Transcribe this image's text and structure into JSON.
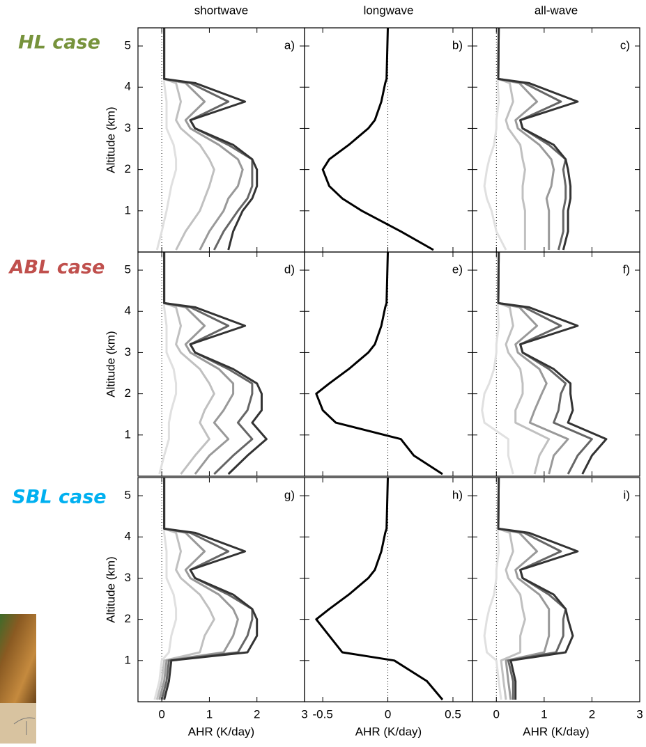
{
  "column_titles": [
    "shortwave",
    "longwave",
    "all-wave"
  ],
  "row_labels": [
    {
      "text": "HL case",
      "color": "#77933c"
    },
    {
      "text": "ABL case",
      "color": "#c0504d"
    },
    {
      "text": "SBL case",
      "color": "#00b0f0"
    }
  ],
  "chart_data": [
    {
      "type": "line",
      "panel_label": "a)",
      "ylabel": "Altitude (km)",
      "xlim": [
        -0.5,
        3
      ],
      "ylim": [
        0,
        5.44
      ],
      "xticks": [
        0,
        1,
        2,
        3
      ],
      "yticks": [
        1,
        2,
        3,
        4,
        5
      ],
      "y": [
        0.05,
        0.5,
        1,
        1.3,
        1.6,
        2,
        2.25,
        2.6,
        3,
        3.2,
        3.65,
        4.1,
        4.2,
        5.5
      ],
      "series": [
        {
          "color": "#e0e0e0",
          "values": [
            -0.1,
            0,
            0.1,
            0.15,
            0.2,
            0.3,
            0.3,
            0.25,
            0.1,
            0.1,
            0.1,
            0.05,
            0.05,
            0.05
          ]
        },
        {
          "color": "#c0c0c0",
          "values": [
            0.3,
            0.5,
            0.8,
            0.9,
            1,
            1.1,
            1,
            0.8,
            0.4,
            0.3,
            0.4,
            0.3,
            0.05,
            0.05
          ]
        },
        {
          "color": "#999999",
          "values": [
            0.8,
            1,
            1.3,
            1.4,
            1.6,
            1.7,
            1.6,
            1.2,
            0.6,
            0.5,
            0.9,
            0.5,
            0.05,
            0.05
          ]
        },
        {
          "color": "#666666",
          "values": [
            1.1,
            1.3,
            1.6,
            1.8,
            1.9,
            1.9,
            1.9,
            1.4,
            0.7,
            0.6,
            1.4,
            0.6,
            0.05,
            0.05
          ]
        },
        {
          "color": "#333333",
          "values": [
            1.4,
            1.5,
            1.7,
            1.9,
            2,
            2,
            1.9,
            1.5,
            0.7,
            0.6,
            1.75,
            0.7,
            0.05,
            0.05
          ]
        }
      ]
    },
    {
      "type": "line",
      "panel_label": "b)",
      "xlim": [
        -0.64,
        0.65
      ],
      "ylim": [
        0,
        5.44
      ],
      "xticks": [
        -0.5,
        0,
        0.5
      ],
      "yticks": [
        1,
        2,
        3,
        4,
        5
      ],
      "y": [
        0.05,
        0.5,
        1,
        1.3,
        1.6,
        2,
        2.25,
        2.6,
        3,
        3.2,
        3.65,
        4.1,
        4.2,
        5.5
      ],
      "series": [
        {
          "color": "#000000",
          "values": [
            0.35,
            0.1,
            -0.2,
            -0.35,
            -0.45,
            -0.5,
            -0.45,
            -0.3,
            -0.15,
            -0.1,
            -0.05,
            -0.02,
            -0.01,
            0
          ]
        }
      ]
    },
    {
      "type": "line",
      "panel_label": "c)",
      "xlim": [
        -0.5,
        3
      ],
      "ylim": [
        0,
        5.44
      ],
      "xticks": [
        0,
        1,
        2,
        3
      ],
      "yticks": [
        1,
        2,
        3,
        4,
        5
      ],
      "y": [
        0.05,
        0.5,
        1,
        1.3,
        1.6,
        2,
        2.25,
        2.6,
        3,
        3.2,
        3.65,
        4.1,
        4.2,
        5.5
      ],
      "series": [
        {
          "color": "#e0e0e0",
          "values": [
            0.2,
            0,
            -0.1,
            -0.2,
            -0.25,
            -0.2,
            -0.15,
            -0.05,
            0,
            0,
            0.05,
            0.03,
            0.04,
            0.05
          ]
        },
        {
          "color": "#c0c0c0",
          "values": [
            0.6,
            0.6,
            0.6,
            0.55,
            0.55,
            0.6,
            0.55,
            0.5,
            0.25,
            0.2,
            0.35,
            0.28,
            0.04,
            0.05
          ]
        },
        {
          "color": "#999999",
          "values": [
            1.1,
            1.1,
            1.1,
            1.05,
            1.15,
            1.2,
            1.15,
            0.9,
            0.45,
            0.4,
            0.85,
            0.48,
            0.04,
            0.05
          ]
        },
        {
          "color": "#666666",
          "values": [
            1.3,
            1.4,
            1.4,
            1.45,
            1.45,
            1.4,
            1.45,
            1.1,
            0.55,
            0.5,
            1.35,
            0.58,
            0.04,
            0.05
          ]
        },
        {
          "color": "#333333",
          "values": [
            1.4,
            1.5,
            1.5,
            1.55,
            1.55,
            1.5,
            1.45,
            1.2,
            0.55,
            0.5,
            1.7,
            0.68,
            0.04,
            0.05
          ]
        }
      ]
    },
    {
      "type": "line",
      "panel_label": "d)",
      "ylabel": "Altitude (km)",
      "xlim": [
        -0.5,
        3
      ],
      "ylim": [
        0,
        5.44
      ],
      "xticks": [
        0,
        1,
        2,
        3
      ],
      "yticks": [
        1,
        2,
        3,
        4,
        5
      ],
      "y": [
        0.05,
        0.5,
        0.9,
        1.3,
        1.6,
        2,
        2.25,
        2.6,
        3,
        3.2,
        3.65,
        4.1,
        4.2,
        5.5
      ],
      "series": [
        {
          "color": "#e0e0e0",
          "values": [
            -0.05,
            0.05,
            0.15,
            0.15,
            0.2,
            0.3,
            0.3,
            0.25,
            0.1,
            0.1,
            0.1,
            0.05,
            0.05,
            0.05
          ]
        },
        {
          "color": "#c0c0c0",
          "values": [
            0.4,
            0.7,
            1,
            0.8,
            0.9,
            1.1,
            1,
            0.8,
            0.4,
            0.3,
            0.4,
            0.3,
            0.05,
            0.05
          ]
        },
        {
          "color": "#999999",
          "values": [
            0.7,
            1,
            1.4,
            1.1,
            1.3,
            1.5,
            1.5,
            1.2,
            0.6,
            0.5,
            0.9,
            0.5,
            0.05,
            0.05
          ]
        },
        {
          "color": "#666666",
          "values": [
            1.1,
            1.5,
            1.9,
            1.6,
            1.8,
            1.9,
            1.9,
            1.4,
            0.7,
            0.6,
            1.4,
            0.6,
            0.05,
            0.05
          ]
        },
        {
          "color": "#333333",
          "values": [
            1.4,
            1.8,
            2.2,
            1.9,
            2.1,
            2.1,
            2,
            1.5,
            0.7,
            0.6,
            1.75,
            0.7,
            0.05,
            0.05
          ]
        }
      ]
    },
    {
      "type": "line",
      "panel_label": "e)",
      "xlim": [
        -0.64,
        0.65
      ],
      "ylim": [
        0,
        5.44
      ],
      "xticks": [
        -0.5,
        0,
        0.5
      ],
      "yticks": [
        1,
        2,
        3,
        4,
        5
      ],
      "y": [
        0.05,
        0.5,
        0.9,
        1.3,
        1.6,
        2,
        2.25,
        2.6,
        3,
        3.2,
        3.65,
        4.1,
        4.2,
        5.5
      ],
      "series": [
        {
          "color": "#000000",
          "values": [
            0.42,
            0.2,
            0.1,
            -0.4,
            -0.5,
            -0.55,
            -0.45,
            -0.3,
            -0.15,
            -0.1,
            -0.05,
            -0.02,
            -0.01,
            0
          ]
        }
      ]
    },
    {
      "type": "line",
      "panel_label": "f)",
      "xlim": [
        -0.5,
        3
      ],
      "ylim": [
        0,
        5.44
      ],
      "xticks": [
        0,
        1,
        2,
        3
      ],
      "yticks": [
        1,
        2,
        3,
        4,
        5
      ],
      "y": [
        0.05,
        0.5,
        0.9,
        1.3,
        1.6,
        2,
        2.25,
        2.6,
        3,
        3.2,
        3.65,
        4.1,
        4.2,
        5.5
      ],
      "series": [
        {
          "color": "#e0e0e0",
          "values": [
            0.35,
            0.25,
            0.25,
            -0.25,
            -0.3,
            -0.25,
            -0.15,
            -0.05,
            0,
            0,
            0.05,
            0.03,
            0.04,
            0.05
          ]
        },
        {
          "color": "#c0c0c0",
          "values": [
            0.8,
            0.9,
            1.1,
            0.4,
            0.4,
            0.55,
            0.55,
            0.5,
            0.25,
            0.2,
            0.35,
            0.28,
            0.04,
            0.05
          ]
        },
        {
          "color": "#999999",
          "values": [
            1.1,
            1.2,
            1.5,
            0.7,
            0.8,
            0.95,
            1.05,
            0.9,
            0.45,
            0.4,
            0.85,
            0.48,
            0.04,
            0.05
          ]
        },
        {
          "color": "#666666",
          "values": [
            1.5,
            1.7,
            2,
            1.2,
            1.3,
            1.35,
            1.45,
            1.1,
            0.55,
            0.5,
            1.35,
            0.58,
            0.04,
            0.05
          ]
        },
        {
          "color": "#333333",
          "values": [
            1.8,
            2,
            2.3,
            1.5,
            1.6,
            1.55,
            1.55,
            1.2,
            0.55,
            0.5,
            1.7,
            0.68,
            0.04,
            0.05
          ]
        }
      ]
    },
    {
      "type": "line",
      "panel_label": "g)",
      "ylabel": "Altitude (km)",
      "xlabel": "AHR (K/day)",
      "xlim": [
        -0.5,
        3
      ],
      "ylim": [
        0,
        5.44
      ],
      "xticks": [
        0,
        1,
        2,
        3
      ],
      "yticks": [
        1,
        2,
        3,
        4,
        5
      ],
      "y": [
        0.05,
        0.5,
        1,
        1.2,
        1.6,
        2,
        2.25,
        2.6,
        3,
        3.2,
        3.65,
        4.1,
        4.2,
        5.5
      ],
      "series": [
        {
          "color": "#e0e0e0",
          "values": [
            -0.15,
            -0.05,
            0,
            0.15,
            0.2,
            0.3,
            0.3,
            0.25,
            0.1,
            0.1,
            0.1,
            0.05,
            0.05,
            0.05
          ]
        },
        {
          "color": "#c0c0c0",
          "values": [
            -0.1,
            0,
            0.05,
            0.8,
            0.9,
            1.1,
            1,
            0.8,
            0.4,
            0.3,
            0.4,
            0.3,
            0.05,
            0.05
          ]
        },
        {
          "color": "#999999",
          "values": [
            -0.05,
            0.05,
            0.1,
            1.3,
            1.5,
            1.6,
            1.5,
            1.2,
            0.6,
            0.5,
            0.9,
            0.5,
            0.05,
            0.05
          ]
        },
        {
          "color": "#666666",
          "values": [
            0,
            0.1,
            0.15,
            1.6,
            1.8,
            1.9,
            1.9,
            1.4,
            0.7,
            0.6,
            1.4,
            0.6,
            0.05,
            0.05
          ]
        },
        {
          "color": "#333333",
          "values": [
            0.05,
            0.15,
            0.2,
            1.8,
            2,
            2,
            1.9,
            1.5,
            0.7,
            0.6,
            1.75,
            0.7,
            0.05,
            0.05
          ]
        }
      ]
    },
    {
      "type": "line",
      "panel_label": "h)",
      "xlabel": "AHR (K/day)",
      "xlim": [
        -0.64,
        0.65
      ],
      "ylim": [
        0,
        5.44
      ],
      "xticks": [
        -0.5,
        {
          "value": 0,
          "label": "0"
        },
        0.5
      ],
      "yticks": [
        1,
        2,
        3,
        4,
        5
      ],
      "y": [
        0.05,
        0.5,
        1,
        1.2,
        1.6,
        2,
        2.25,
        2.6,
        3,
        3.2,
        3.65,
        4.1,
        4.2,
        5.5
      ],
      "series": [
        {
          "color": "#000000",
          "values": [
            0.42,
            0.3,
            0.05,
            -0.35,
            -0.45,
            -0.55,
            -0.45,
            -0.3,
            -0.15,
            -0.1,
            -0.05,
            -0.02,
            -0.01,
            0
          ]
        }
      ]
    },
    {
      "type": "line",
      "panel_label": "i)",
      "xlabel": "AHR (K/day)",
      "xlim": [
        -0.5,
        3
      ],
      "ylim": [
        0,
        5.44
      ],
      "xticks": [
        0,
        1,
        2,
        3
      ],
      "yticks": [
        1,
        2,
        3,
        4,
        5
      ],
      "y": [
        0.05,
        0.5,
        1,
        1.2,
        1.6,
        2,
        2.25,
        2.6,
        3,
        3.2,
        3.65,
        4.1,
        4.2,
        5.5
      ],
      "series": [
        {
          "color": "#e0e0e0",
          "values": [
            0.1,
            0.05,
            0,
            -0.2,
            -0.25,
            -0.2,
            -0.15,
            -0.05,
            0,
            0,
            0.05,
            0.03,
            0.04,
            0.05
          ]
        },
        {
          "color": "#c0c0c0",
          "values": [
            0.2,
            0.15,
            0.1,
            0.5,
            0.5,
            0.6,
            0.55,
            0.5,
            0.25,
            0.2,
            0.35,
            0.28,
            0.04,
            0.05
          ]
        },
        {
          "color": "#999999",
          "values": [
            0.3,
            0.25,
            0.2,
            1,
            1.1,
            1.1,
            1.1,
            0.9,
            0.45,
            0.4,
            0.85,
            0.48,
            0.04,
            0.05
          ]
        },
        {
          "color": "#666666",
          "values": [
            0.35,
            0.35,
            0.25,
            1.25,
            1.4,
            1.4,
            1.45,
            1.1,
            0.55,
            0.5,
            1.35,
            0.58,
            0.04,
            0.05
          ]
        },
        {
          "color": "#333333",
          "values": [
            0.4,
            0.4,
            0.3,
            1.45,
            1.6,
            1.5,
            1.45,
            1.2,
            0.55,
            0.5,
            1.7,
            0.68,
            0.04,
            0.05
          ]
        }
      ]
    }
  ]
}
